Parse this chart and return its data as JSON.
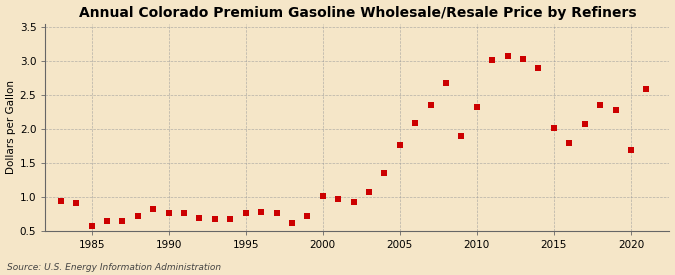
{
  "title": "Annual Colorado Premium Gasoline Wholesale/Resale Price by Refiners",
  "ylabel": "Dollars per Gallon",
  "source": "Source: U.S. Energy Information Administration",
  "background_color": "#f5e6c8",
  "plot_bg_color": "#f5e6c8",
  "point_color": "#cc0000",
  "years": [
    1983,
    1984,
    1985,
    1986,
    1987,
    1988,
    1989,
    1990,
    1991,
    1992,
    1993,
    1994,
    1995,
    1996,
    1997,
    1998,
    1999,
    2000,
    2001,
    2002,
    2003,
    2004,
    2005,
    2006,
    2007,
    2008,
    2009,
    2010,
    2011,
    2012,
    2013,
    2014,
    2015,
    2016,
    2017,
    2018,
    2019,
    2020,
    2021
  ],
  "values": [
    0.95,
    0.92,
    0.57,
    0.65,
    0.65,
    0.72,
    0.82,
    0.77,
    0.76,
    0.7,
    0.68,
    0.68,
    0.77,
    0.78,
    0.76,
    0.62,
    0.73,
    1.02,
    0.97,
    0.93,
    1.07,
    1.36,
    1.77,
    2.09,
    2.35,
    2.68,
    1.9,
    2.33,
    3.01,
    3.07,
    3.03,
    2.9,
    2.01,
    1.8,
    2.07,
    2.35,
    2.28,
    1.69,
    2.59
  ],
  "xlim": [
    1982,
    2022.5
  ],
  "ylim": [
    0.5,
    3.55
  ],
  "yticks": [
    0.5,
    1.0,
    1.5,
    2.0,
    2.5,
    3.0,
    3.5
  ],
  "ytick_labels": [
    "0.5",
    "1.0",
    "1.5",
    "2.0",
    "2.5",
    "3.0",
    "3.5"
  ],
  "xticks": [
    1985,
    1990,
    1995,
    2000,
    2005,
    2010,
    2015,
    2020
  ],
  "grid_color": "#999999",
  "marker_size": 18,
  "title_fontsize": 10,
  "tick_fontsize": 7.5,
  "ylabel_fontsize": 7.5,
  "source_fontsize": 6.5
}
